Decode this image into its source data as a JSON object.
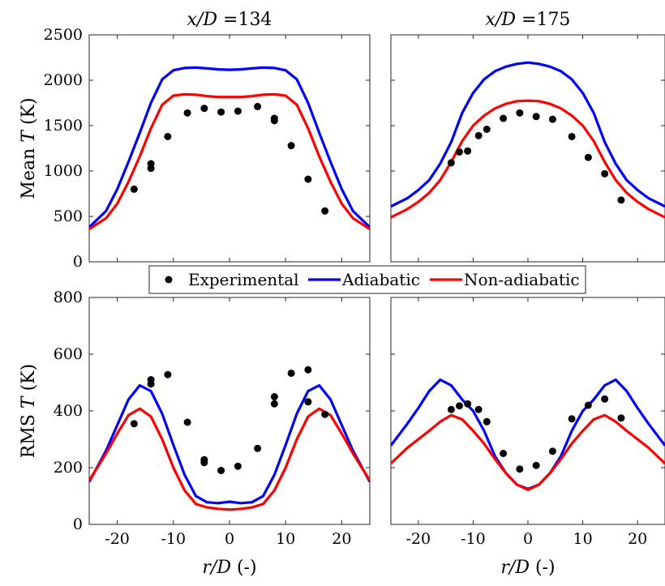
{
  "chart_data": [
    {
      "type": "line",
      "panel": "top-left",
      "title": "x/D =134",
      "ylabel": "Mean T (K)",
      "xlabel": "",
      "xlim": [
        -25,
        25
      ],
      "ylim": [
        0,
        2500
      ],
      "xticks": [
        -20,
        -10,
        0,
        10,
        20
      ],
      "yticks": [
        0,
        500,
        1000,
        1500,
        2000,
        2500
      ],
      "show_xticklabels": false,
      "show_yticklabels": true,
      "grid": false,
      "series": [
        {
          "name": "Adiabatic",
          "color": "#0000ff",
          "x": [
            -25,
            -22,
            -20,
            -18,
            -16,
            -14,
            -12,
            -10,
            -8,
            -6,
            -4,
            -2,
            0,
            2,
            4,
            6,
            8,
            10,
            12,
            14,
            16,
            18,
            20,
            22,
            25
          ],
          "y": [
            380,
            560,
            800,
            1100,
            1420,
            1750,
            2010,
            2110,
            2135,
            2140,
            2130,
            2120,
            2115,
            2120,
            2130,
            2140,
            2135,
            2110,
            2010,
            1750,
            1420,
            1100,
            800,
            560,
            380
          ]
        },
        {
          "name": "Non-adiabatic",
          "color": "#ff0000",
          "x": [
            -25,
            -22,
            -20,
            -18,
            -16,
            -14,
            -12,
            -10,
            -8,
            -6,
            -4,
            -2,
            0,
            2,
            4,
            6,
            8,
            10,
            12,
            14,
            16,
            18,
            20,
            22,
            25
          ],
          "y": [
            360,
            480,
            640,
            880,
            1160,
            1470,
            1730,
            1830,
            1845,
            1840,
            1825,
            1815,
            1815,
            1815,
            1825,
            1840,
            1845,
            1830,
            1730,
            1470,
            1160,
            880,
            640,
            480,
            360
          ]
        },
        {
          "name": "Experimental",
          "color": "#000000",
          "marker": "circle",
          "x": [
            -17,
            -14,
            -14,
            -11,
            -7.5,
            -4.5,
            -1.5,
            1.5,
            5,
            8,
            8,
            11,
            14,
            17
          ],
          "y": [
            800,
            1080,
            1030,
            1380,
            1640,
            1690,
            1650,
            1660,
            1710,
            1580,
            1555,
            1280,
            910,
            560
          ]
        }
      ]
    },
    {
      "type": "line",
      "panel": "top-right",
      "title": "x/D =175",
      "ylabel": "",
      "xlabel": "",
      "xlim": [
        -25,
        25
      ],
      "ylim": [
        0,
        2500
      ],
      "xticks": [
        -20,
        -10,
        0,
        10,
        20
      ],
      "yticks": [
        0,
        500,
        1000,
        1500,
        2000,
        2500
      ],
      "show_xticklabels": false,
      "show_yticklabels": false,
      "grid": false,
      "series": [
        {
          "name": "Adiabatic",
          "color": "#0000ff",
          "x": [
            -25,
            -22,
            -20,
            -18,
            -16,
            -14,
            -12,
            -10,
            -8,
            -6,
            -4,
            -2,
            0,
            2,
            4,
            6,
            8,
            10,
            12,
            14,
            16,
            18,
            20,
            22,
            25
          ],
          "y": [
            610,
            700,
            790,
            900,
            1080,
            1320,
            1640,
            1860,
            2010,
            2100,
            2150,
            2180,
            2195,
            2180,
            2150,
            2100,
            2010,
            1860,
            1640,
            1320,
            1080,
            900,
            790,
            700,
            610
          ]
        },
        {
          "name": "Non-adiabatic",
          "color": "#ff0000",
          "x": [
            -25,
            -22,
            -20,
            -18,
            -16,
            -14,
            -12,
            -10,
            -8,
            -6,
            -4,
            -2,
            0,
            2,
            4,
            6,
            8,
            10,
            12,
            14,
            16,
            18,
            20,
            22,
            25
          ],
          "y": [
            490,
            580,
            660,
            760,
            900,
            1100,
            1330,
            1500,
            1610,
            1690,
            1740,
            1770,
            1775,
            1770,
            1740,
            1690,
            1610,
            1500,
            1330,
            1100,
            900,
            760,
            660,
            580,
            490
          ]
        },
        {
          "name": "Experimental",
          "color": "#000000",
          "marker": "circle",
          "x": [
            -14,
            -12.5,
            -11,
            -9,
            -7.5,
            -4.5,
            -1.5,
            1.5,
            4.5,
            8,
            11,
            14,
            17
          ],
          "y": [
            1090,
            1210,
            1220,
            1390,
            1460,
            1580,
            1640,
            1600,
            1570,
            1380,
            1150,
            970,
            680
          ]
        }
      ]
    },
    {
      "type": "line",
      "panel": "bottom-left",
      "title": "",
      "ylabel": "RMS T (K)",
      "xlabel": "r/D (-)",
      "xlim": [
        -25,
        25
      ],
      "ylim": [
        0,
        800
      ],
      "xticks": [
        -20,
        -10,
        0,
        10,
        20
      ],
      "yticks": [
        0,
        200,
        400,
        600,
        800
      ],
      "show_xticklabels": true,
      "show_yticklabels": true,
      "grid": false,
      "series": [
        {
          "name": "Adiabatic",
          "color": "#0000ff",
          "x": [
            -25,
            -22,
            -20,
            -18,
            -16,
            -14,
            -12,
            -10,
            -8,
            -6,
            -4,
            -2,
            0,
            2,
            4,
            6,
            8,
            10,
            12,
            14,
            16,
            18,
            20,
            22,
            25
          ],
          "y": [
            150,
            260,
            350,
            440,
            490,
            470,
            390,
            280,
            175,
            100,
            78,
            75,
            80,
            75,
            78,
            100,
            175,
            280,
            390,
            470,
            490,
            440,
            350,
            260,
            150
          ]
        },
        {
          "name": "Non-adiabatic",
          "color": "#ff0000",
          "x": [
            -25,
            -22,
            -20,
            -18,
            -16,
            -14,
            -12,
            -10,
            -8,
            -6,
            -4,
            -2,
            0,
            2,
            4,
            6,
            8,
            10,
            12,
            14,
            16,
            18,
            20,
            22,
            25
          ],
          "y": [
            155,
            250,
            320,
            385,
            408,
            380,
            300,
            200,
            120,
            72,
            60,
            55,
            52,
            55,
            60,
            72,
            120,
            200,
            300,
            380,
            408,
            385,
            320,
            250,
            155
          ]
        },
        {
          "name": "Experimental",
          "color": "#000000",
          "marker": "circle",
          "x": [
            -17,
            -14,
            -14,
            -11,
            -7.5,
            -4.5,
            -4.5,
            -1.5,
            1.5,
            5,
            8,
            8,
            11,
            14,
            14,
            17
          ],
          "y": [
            355,
            510,
            495,
            528,
            360,
            228,
            218,
            190,
            205,
            268,
            450,
            425,
            533,
            545,
            432,
            388
          ]
        }
      ]
    },
    {
      "type": "line",
      "panel": "bottom-right",
      "title": "",
      "ylabel": "",
      "xlabel": "r/D (-)",
      "xlim": [
        -25,
        25
      ],
      "ylim": [
        0,
        800
      ],
      "xticks": [
        -20,
        -10,
        0,
        10,
        20
      ],
      "yticks": [
        0,
        200,
        400,
        600,
        800
      ],
      "show_xticklabels": true,
      "show_yticklabels": false,
      "grid": false,
      "series": [
        {
          "name": "Adiabatic",
          "color": "#0000ff",
          "x": [
            -25,
            -22,
            -20,
            -18,
            -16,
            -14,
            -12,
            -10,
            -8,
            -6,
            -4,
            -2,
            0,
            2,
            4,
            6,
            8,
            10,
            12,
            14,
            16,
            18,
            20,
            22,
            25
          ],
          "y": [
            278,
            355,
            410,
            470,
            510,
            490,
            440,
            400,
            330,
            240,
            180,
            140,
            125,
            140,
            180,
            240,
            330,
            400,
            440,
            490,
            510,
            470,
            410,
            355,
            278
          ]
        },
        {
          "name": "Non-adiabatic",
          "color": "#ff0000",
          "x": [
            -25,
            -22,
            -20,
            -18,
            -16,
            -14,
            -12,
            -10,
            -8,
            -6,
            -4,
            -2,
            0,
            2,
            4,
            6,
            8,
            10,
            12,
            14,
            16,
            18,
            20,
            22,
            25
          ],
          "y": [
            215,
            270,
            300,
            330,
            362,
            385,
            370,
            330,
            285,
            230,
            180,
            140,
            122,
            140,
            180,
            230,
            285,
            330,
            370,
            385,
            362,
            330,
            300,
            270,
            215
          ]
        },
        {
          "name": "Experimental",
          "color": "#000000",
          "marker": "circle",
          "x": [
            -14,
            -12.5,
            -11,
            -9,
            -7.5,
            -4.5,
            -1.5,
            1.5,
            4.5,
            8,
            11,
            14,
            17
          ],
          "y": [
            405,
            418,
            425,
            405,
            362,
            250,
            195,
            208,
            258,
            372,
            420,
            442,
            375
          ]
        }
      ]
    }
  ],
  "legend": {
    "placement": "center",
    "items": [
      {
        "label": "Experimental",
        "type": "marker",
        "color": "#000000"
      },
      {
        "label": "Adiabatic",
        "type": "line",
        "color": "#0000ff"
      },
      {
        "label": "Non-adiabatic",
        "type": "line",
        "color": "#ff0000"
      }
    ]
  }
}
